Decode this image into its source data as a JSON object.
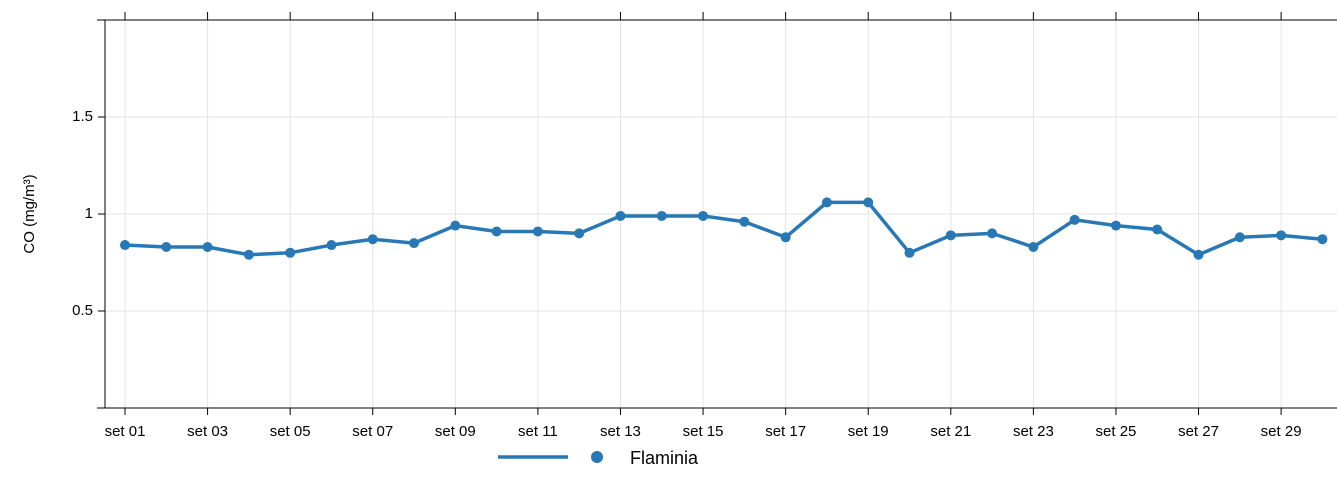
{
  "chart_data": {
    "type": "line",
    "y_label": "CO (mg/m³)",
    "categories": [
      "set 01",
      null,
      "set 03",
      null,
      "set 05",
      null,
      "set 07",
      null,
      "set 09",
      null,
      "set 11",
      null,
      "set 13",
      null,
      "set 15",
      null,
      "set 17",
      null,
      "set 19",
      null,
      "set 21",
      null,
      "set 23",
      null,
      "set 25",
      null,
      "set 27",
      null,
      "set 29",
      null
    ],
    "series": [
      {
        "name": "Flaminia",
        "color": "#2878b5",
        "values": [
          0.84,
          0.83,
          0.83,
          0.79,
          0.8,
          0.84,
          0.87,
          0.85,
          0.94,
          0.91,
          0.91,
          0.9,
          0.99,
          0.99,
          0.99,
          0.96,
          0.88,
          1.06,
          1.06,
          0.8,
          0.89,
          0.9,
          0.83,
          0.97,
          0.94,
          0.92,
          0.79,
          0.88,
          0.89,
          0.87
        ]
      }
    ],
    "ylim": [
      0,
      2
    ],
    "yticks": [
      0.5,
      1.0,
      1.5
    ],
    "grid": true
  }
}
